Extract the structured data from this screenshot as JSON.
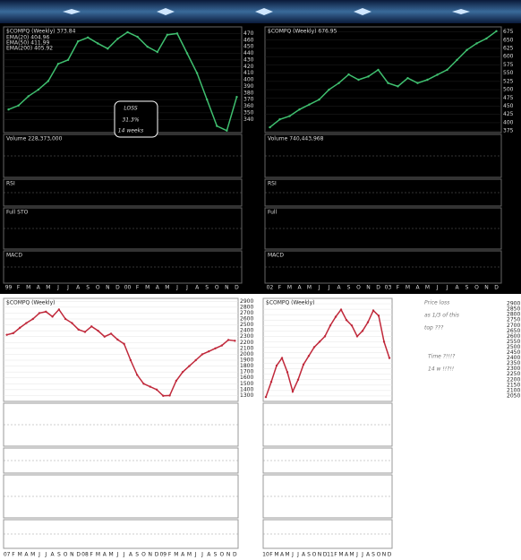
{
  "chart_data": [
    {
      "type": "line",
      "title": "$COMPQ (Weekly) 373.84",
      "legend": [
        "EMA(20) 404.96",
        "EMA(50) 411.99",
        "EMA(200) 405.92"
      ],
      "background": "#000",
      "color": "#3fbf6f",
      "categories": [
        "99",
        "F",
        "M",
        "A",
        "M",
        "J",
        "J",
        "A",
        "S",
        "O",
        "N",
        "D",
        "00",
        "F",
        "M",
        "A",
        "M",
        "J",
        "J",
        "A",
        "S",
        "O",
        "N",
        "D"
      ],
      "values": [
        355,
        361,
        375,
        385,
        398,
        424,
        430,
        458,
        464,
        455,
        447,
        462,
        472,
        465,
        450,
        442,
        468,
        470,
        440,
        410,
        370,
        330,
        323,
        374
      ],
      "ylim": [
        320,
        480
      ],
      "yticks": [
        340,
        350,
        360,
        370,
        380,
        390,
        400,
        410,
        420,
        430,
        440,
        450,
        460,
        470
      ],
      "panels": [
        "Volume 228,373,000",
        "RSI",
        "Full STO",
        "MACD"
      ],
      "annotations": [
        "LOSS",
        "31.3%",
        "14 weeks"
      ]
    },
    {
      "type": "line",
      "title": "$COMPQ (Weekly) 676.95",
      "legend": [],
      "background": "#000",
      "color": "#3fbf6f",
      "categories": [
        "02",
        "F",
        "M",
        "A",
        "M",
        "J",
        "J",
        "A",
        "S",
        "O",
        "N",
        "D",
        "03",
        "F",
        "M",
        "A",
        "M",
        "J",
        "J",
        "A",
        "S",
        "O",
        "N",
        "D"
      ],
      "values": [
        386,
        410,
        420,
        440,
        455,
        470,
        500,
        520,
        546,
        530,
        540,
        560,
        520,
        510,
        535,
        520,
        530,
        545,
        560,
        590,
        620,
        640,
        655,
        677
      ],
      "ylim": [
        370,
        690
      ],
      "yticks": [
        375,
        400,
        425,
        450,
        475,
        500,
        525,
        550,
        575,
        600,
        625,
        650,
        675
      ],
      "panels": [
        "Volume 740,443,968",
        "RSI",
        "Full",
        "MACD"
      ],
      "annotations": []
    },
    {
      "type": "line",
      "title": "$COMPQ (Weekly)",
      "legend": [],
      "background": "#fff",
      "color": "#c0283a",
      "categories": [
        "07",
        "F",
        "M",
        "A",
        "M",
        "J",
        "J",
        "A",
        "S",
        "O",
        "N",
        "D",
        "08",
        "F",
        "M",
        "A",
        "M",
        "J",
        "J",
        "A",
        "S",
        "O",
        "N",
        "D",
        "09",
        "F",
        "M",
        "A",
        "M",
        "J",
        "J",
        "A",
        "S",
        "O",
        "N",
        "D"
      ],
      "values": [
        2331,
        2360,
        2450,
        2531,
        2600,
        2700,
        2724,
        2640,
        2761,
        2600,
        2531,
        2420,
        2380,
        2473,
        2400,
        2300,
        2350,
        2250,
        2176,
        1900,
        1650,
        1500,
        1450,
        1400,
        1295,
        1300,
        1550,
        1700,
        1800,
        1900,
        2000,
        2050,
        2100,
        2150,
        2244,
        2230
      ],
      "ylim": [
        1200,
        2950
      ],
      "yticks": [
        1300,
        1400,
        1500,
        1600,
        1700,
        1800,
        1900,
        2000,
        2100,
        2200,
        2300,
        2400,
        2500,
        2600,
        2700,
        2800,
        2900
      ],
      "panels": [],
      "annotations": []
    },
    {
      "type": "line",
      "title": "$COMPQ (Weekly)",
      "legend": [],
      "background": "#fff",
      "color": "#c0283a",
      "categories": [
        "10",
        "F",
        "M",
        "A",
        "M",
        "J",
        "J",
        "A",
        "S",
        "O",
        "N",
        "D",
        "11",
        "F",
        "M",
        "A",
        "M",
        "J",
        "J",
        "A",
        "S",
        "O",
        "N",
        "D"
      ],
      "values": [
        2040,
        2180,
        2330,
        2400,
        2270,
        2091,
        2200,
        2340,
        2420,
        2500,
        2550,
        2600,
        2700,
        2780,
        2846,
        2750,
        2700,
        2600,
        2650,
        2730,
        2838,
        2790,
        2550,
        2400
      ],
      "ylim": [
        2000,
        2950
      ],
      "yticks": [
        2050,
        2100,
        2150,
        2200,
        2250,
        2300,
        2350,
        2400,
        2450,
        2500,
        2550,
        2600,
        2650,
        2700,
        2750,
        2800,
        2850,
        2900
      ],
      "panels": [],
      "annotations": [
        "Price loss",
        "as 1/3 of this",
        "top ???",
        "Time ?!!!?",
        "14 w !!?!!"
      ]
    }
  ]
}
